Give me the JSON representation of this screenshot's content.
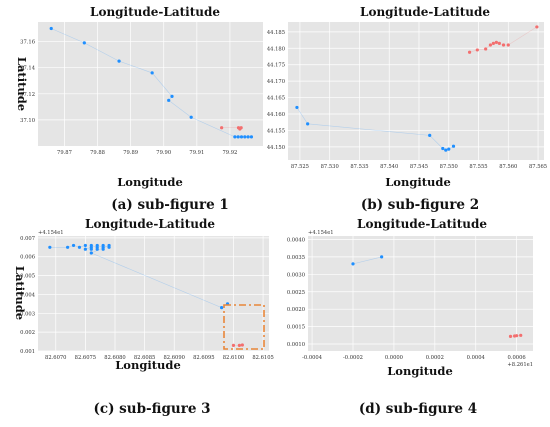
{
  "chart_data": [
    {
      "type": "scatter",
      "title": "Longitude-Latitude",
      "xlabel": "Longitude",
      "ylabel": "Latitude",
      "caption": "(a) sub-figure 1",
      "offset_y": "",
      "offset_x": "",
      "xlim": [
        79.862,
        79.93
      ],
      "ylim": [
        37.08,
        37.175
      ],
      "xticks": [
        {
          "v": 79.87,
          "label": "79.87"
        },
        {
          "v": 79.88,
          "label": "79.88"
        },
        {
          "v": 79.89,
          "label": "79.89"
        },
        {
          "v": 79.9,
          "label": "79.90"
        },
        {
          "v": 79.91,
          "label": "79.91"
        },
        {
          "v": 79.92,
          "label": "79.92"
        }
      ],
      "yticks": [
        {
          "v": 37.1,
          "label": "37.10"
        },
        {
          "v": 37.12,
          "label": "37.12"
        },
        {
          "v": 37.14,
          "label": "37.14"
        },
        {
          "v": 37.16,
          "label": "37.16"
        }
      ],
      "series": [
        {
          "color": "#1f8fff",
          "x": [
            79.866,
            79.876,
            79.8865,
            79.8965,
            79.9025,
            79.9015,
            79.9083,
            79.9215,
            79.9225,
            79.9235,
            79.9245,
            79.9255,
            79.9265
          ],
          "y": [
            37.17,
            37.159,
            37.145,
            37.136,
            37.118,
            37.115,
            37.102,
            37.087,
            37.087,
            37.087,
            37.087,
            37.087,
            37.087
          ]
        },
        {
          "color": "#f36f6f",
          "x": [
            79.9175,
            79.9226,
            79.923,
            79.9234
          ],
          "y": [
            37.094,
            37.094,
            37.093,
            37.094
          ]
        }
      ]
    },
    {
      "type": "scatter",
      "title": "Longitude-Latitude",
      "xlabel": "Longitude",
      "ylabel": "",
      "caption": "(b) sub-figure 2",
      "offset_y": "",
      "offset_x": "",
      "xlim": [
        87.523,
        87.566
      ],
      "ylim": [
        44.146,
        44.188
      ],
      "xticks": [
        {
          "v": 87.525,
          "label": "87.525"
        },
        {
          "v": 87.53,
          "label": "87.530"
        },
        {
          "v": 87.535,
          "label": "87.535"
        },
        {
          "v": 87.54,
          "label": "87.540"
        },
        {
          "v": 87.545,
          "label": "87.545"
        },
        {
          "v": 87.55,
          "label": "87.550"
        },
        {
          "v": 87.555,
          "label": "87.555"
        },
        {
          "v": 87.56,
          "label": "87.560"
        },
        {
          "v": 87.565,
          "label": "87.565"
        }
      ],
      "yticks": [
        {
          "v": 44.15,
          "label": "44.150"
        },
        {
          "v": 44.155,
          "label": "44.155"
        },
        {
          "v": 44.16,
          "label": "44.160"
        },
        {
          "v": 44.165,
          "label": "44.165"
        },
        {
          "v": 44.17,
          "label": "44.170"
        },
        {
          "v": 44.175,
          "label": "44.175"
        },
        {
          "v": 44.18,
          "label": "44.180"
        },
        {
          "v": 44.185,
          "label": "44.185"
        }
      ],
      "series": [
        {
          "color": "#1f8fff",
          "x": [
            87.5245,
            87.5263,
            87.5468,
            87.549,
            87.5495,
            87.55,
            87.5508
          ],
          "y": [
            44.162,
            44.157,
            44.1535,
            44.1495,
            44.149,
            44.1493,
            44.1502
          ]
        },
        {
          "color": "#f36f6f",
          "x": [
            87.5535,
            87.5548,
            87.5562,
            87.557,
            87.5575,
            87.558,
            87.5585,
            87.5592,
            87.56,
            87.5648
          ],
          "y": [
            44.1788,
            44.1795,
            44.1798,
            44.181,
            44.1815,
            44.1818,
            44.1815,
            44.181,
            44.181,
            44.1865
          ]
        }
      ]
    },
    {
      "type": "scatter",
      "title": "Longitude-Latitude",
      "xlabel": "Longitude",
      "ylabel": "Latitude",
      "caption": "(c) sub-figure 3",
      "offset_y": "+4.154e1",
      "offset_x": "",
      "xlim": [
        82.6067,
        82.6106
      ],
      "ylim": [
        0.001,
        0.0071
      ],
      "xticks": [
        {
          "v": 82.607,
          "label": "82.6070"
        },
        {
          "v": 82.6075,
          "label": "82.6075"
        },
        {
          "v": 82.608,
          "label": "82.6080"
        },
        {
          "v": 82.6085,
          "label": "82.6085"
        },
        {
          "v": 82.609,
          "label": "82.6090"
        },
        {
          "v": 82.6095,
          "label": "82.6095"
        },
        {
          "v": 82.61,
          "label": "82.6100"
        },
        {
          "v": 82.6105,
          "label": "82.6105"
        }
      ],
      "yticks": [
        {
          "v": 0.001,
          "label": "0.001"
        },
        {
          "v": 0.002,
          "label": "0.002"
        },
        {
          "v": 0.003,
          "label": "0.003"
        },
        {
          "v": 0.004,
          "label": "0.004"
        },
        {
          "v": 0.005,
          "label": "0.005"
        },
        {
          "v": 0.006,
          "label": "0.006"
        },
        {
          "v": 0.007,
          "label": "0.007"
        }
      ],
      "series": [
        {
          "color": "#1f8fff",
          "x": [
            82.6069,
            82.6072,
            82.6073,
            82.6074,
            82.6075,
            82.6075,
            82.6076,
            82.6076,
            82.6076,
            82.6077,
            82.6077,
            82.6077,
            82.6078,
            82.6078,
            82.6078,
            82.6079,
            82.6079,
            82.6076,
            82.6098,
            82.6099
          ],
          "y": [
            0.0065,
            0.0065,
            0.0066,
            0.0065,
            0.0066,
            0.0064,
            0.0065,
            0.0064,
            0.0066,
            0.0065,
            0.0064,
            0.0066,
            0.0065,
            0.0064,
            0.0066,
            0.0065,
            0.0066,
            0.0062,
            0.0033,
            0.0035
          ]
        },
        {
          "color": "#f36f6f",
          "x": [
            82.61,
            82.6101,
            82.61015
          ],
          "y": [
            0.0013,
            0.0013,
            0.00132
          ]
        }
      ]
    },
    {
      "type": "scatter",
      "title": "Longitude-Latitude",
      "xlabel": "Longitude",
      "ylabel": "",
      "caption": "(d) sub-figure 4",
      "offset_y": "+4.154e1",
      "offset_x": "+8.261e1",
      "xlim": [
        -0.00042,
        0.00068
      ],
      "ylim": [
        0.0008,
        0.0041
      ],
      "xticks": [
        {
          "v": -0.0004,
          "label": "-0.0004"
        },
        {
          "v": -0.0002,
          "label": "-0.0002"
        },
        {
          "v": 0.0,
          "label": "0.0000"
        },
        {
          "v": 0.0002,
          "label": "0.0002"
        },
        {
          "v": 0.0004,
          "label": "0.0004"
        },
        {
          "v": 0.0006,
          "label": "0.0006"
        }
      ],
      "yticks": [
        {
          "v": 0.001,
          "label": "0.0010"
        },
        {
          "v": 0.0015,
          "label": "0.0015"
        },
        {
          "v": 0.002,
          "label": "0.0020"
        },
        {
          "v": 0.0025,
          "label": "0.0025"
        },
        {
          "v": 0.003,
          "label": "0.0030"
        },
        {
          "v": 0.0035,
          "label": "0.0035"
        },
        {
          "v": 0.004,
          "label": "0.0040"
        }
      ],
      "series": [
        {
          "color": "#1f8fff",
          "x": [
            -0.0002,
            -6e-05
          ],
          "y": [
            0.0033,
            0.0035
          ]
        },
        {
          "color": "#f36f6f",
          "x": [
            0.00057,
            0.00059,
            0.0006,
            0.00062
          ],
          "y": [
            0.00122,
            0.00123,
            0.00124,
            0.00125
          ]
        }
      ]
    }
  ]
}
